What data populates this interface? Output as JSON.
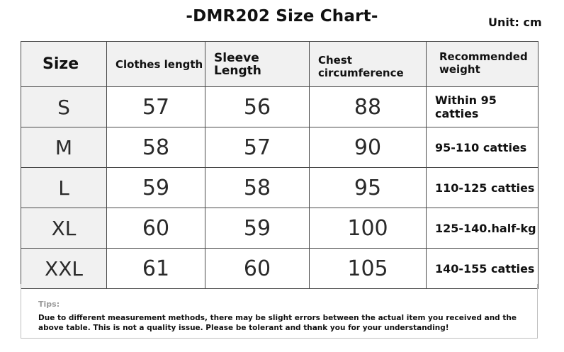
{
  "title": "-DMR202 Size Chart-",
  "unit": "Unit: cm",
  "table": {
    "headers": {
      "size": "Size",
      "clothes_length": "Clothes length",
      "sleeve_length": "Sleeve Length",
      "chest": "Chest circumference",
      "weight": "Recommended weight"
    },
    "rows": [
      {
        "size": "S",
        "clothes_length": "57",
        "sleeve_length": "56",
        "chest": "88",
        "weight": "Within 95 catties"
      },
      {
        "size": "M",
        "clothes_length": "58",
        "sleeve_length": "57",
        "chest": "90",
        "weight": "95-110 catties"
      },
      {
        "size": "L",
        "clothes_length": "59",
        "sleeve_length": "58",
        "chest": "95",
        "weight": "110-125 catties"
      },
      {
        "size": "XL",
        "clothes_length": "60",
        "sleeve_length": "59",
        "chest": "100",
        "weight": "125-140.half-kg"
      },
      {
        "size": "XXL",
        "clothes_length": "61",
        "sleeve_length": "60",
        "chest": "105",
        "weight": "140-155 catties"
      }
    ]
  },
  "tips": {
    "label": "Tips:",
    "text": "Due to different measurement methods, there may be slight errors between the actual item you received and the above table. This is not a quality issue. Please be tolerant and thank you for your understanding!"
  }
}
